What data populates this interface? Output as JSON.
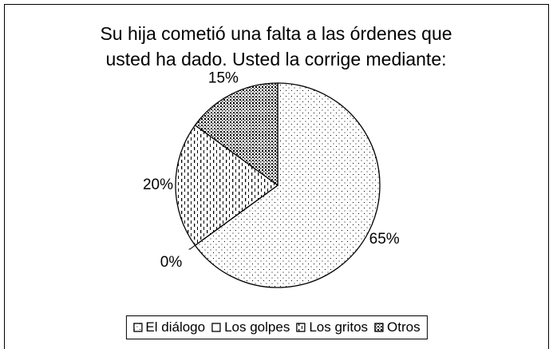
{
  "chart_data": {
    "type": "pie",
    "title": [
      "Su hija cometió una falta a las órdenes que",
      "usted ha dado.  Usted la corrige mediante:"
    ],
    "categories": [
      "El diálogo",
      "Los golpes",
      "Los gritos",
      "Otros"
    ],
    "values": [
      65,
      0,
      20,
      15
    ],
    "value_labels": [
      "65%",
      "0%",
      "20%",
      "15%"
    ],
    "legend": "bottom"
  }
}
